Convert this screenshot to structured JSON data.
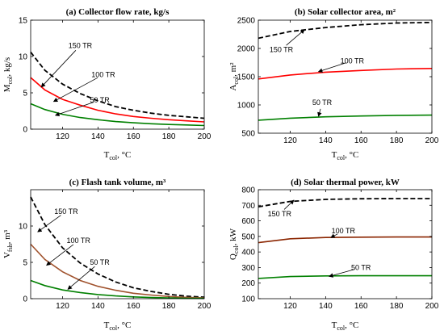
{
  "chart_data": [
    {
      "type": "line",
      "title": "(a) Collector flow rate, kg/s",
      "ylabel_main": "M",
      "ylabel_sub": "col",
      "ylabel_rest": ", kg/s",
      "xlabel_main": "T",
      "xlabel_sub": "col",
      "xlabel_rest": ", °C",
      "xlim": [
        102,
        200
      ],
      "ylim": [
        0,
        15
      ],
      "xticks": [
        120,
        140,
        160,
        180,
        200
      ],
      "yticks": [
        0,
        5,
        10,
        15
      ],
      "x": [
        102,
        110,
        120,
        130,
        140,
        150,
        160,
        170,
        180,
        190,
        200
      ],
      "series": [
        {
          "name": "150 TR",
          "color": "#000000",
          "dash": true,
          "values": [
            10.6,
            8.1,
            6.2,
            4.9,
            3.9,
            3.1,
            2.6,
            2.2,
            1.9,
            1.7,
            1.5
          ]
        },
        {
          "name": "100 TR",
          "color": "#ff0000",
          "dash": false,
          "values": [
            7.1,
            5.4,
            4.1,
            3.3,
            2.6,
            2.1,
            1.75,
            1.5,
            1.3,
            1.15,
            1.0
          ]
        },
        {
          "name": "50 TR",
          "color": "#008000",
          "dash": false,
          "values": [
            3.5,
            2.7,
            2.05,
            1.6,
            1.3,
            1.05,
            0.88,
            0.75,
            0.65,
            0.58,
            0.5
          ]
        }
      ],
      "annotations": [
        {
          "text": "150 TR",
          "x": 130,
          "y": 11.5,
          "tx": 108,
          "ty": 5.8
        },
        {
          "text": "100 TR",
          "x": 143,
          "y": 7.5,
          "tx": 115,
          "ty": 3.8
        },
        {
          "text": "50 TR",
          "x": 141,
          "y": 4.0,
          "tx": 116,
          "ty": 1.9
        }
      ]
    },
    {
      "type": "line",
      "title": "(b) Solar collector area, m²",
      "ylabel_main": "A",
      "ylabel_sub": "col",
      "ylabel_rest": ", m²",
      "xlabel_main": "T",
      "xlabel_sub": "col",
      "xlabel_rest": ", °C",
      "xlim": [
        102,
        200
      ],
      "ylim": [
        500,
        2500
      ],
      "xticks": [
        120,
        140,
        160,
        180,
        200
      ],
      "yticks": [
        500,
        1000,
        1500,
        2000,
        2500
      ],
      "x": [
        102,
        120,
        140,
        160,
        180,
        200
      ],
      "series": [
        {
          "name": "150 TR",
          "color": "#000000",
          "dash": true,
          "values": [
            2180,
            2300,
            2370,
            2420,
            2450,
            2460
          ]
        },
        {
          "name": "100 TR",
          "color": "#ff0000",
          "dash": false,
          "values": [
            1460,
            1530,
            1580,
            1610,
            1635,
            1645
          ]
        },
        {
          "name": "50 TR",
          "color": "#008000",
          "dash": false,
          "values": [
            730,
            765,
            790,
            805,
            815,
            820
          ]
        }
      ],
      "annotations": [
        {
          "text": "150 TR",
          "x": 115,
          "y": 1980,
          "tx": 128,
          "ty": 2330
        },
        {
          "text": "100 TR",
          "x": 155,
          "y": 1780,
          "tx": 136,
          "ty": 1590
        },
        {
          "text": "50 TR",
          "x": 138,
          "y": 1040,
          "tx": 136,
          "ty": 800
        }
      ]
    },
    {
      "type": "line",
      "title": "(c) Flash tank volume, m³",
      "ylabel_main": "V",
      "ylabel_sub": "fsh",
      "ylabel_rest": ", m³",
      "xlabel_main": "T",
      "xlabel_sub": "col",
      "xlabel_rest": ", °C",
      "xlim": [
        102,
        200
      ],
      "ylim": [
        0,
        15
      ],
      "xticks": [
        120,
        140,
        160,
        180,
        200
      ],
      "yticks": [
        0,
        5,
        10
      ],
      "x": [
        102,
        110,
        120,
        130,
        140,
        150,
        160,
        170,
        180,
        190,
        200
      ],
      "series": [
        {
          "name": "150 TR",
          "color": "#000000",
          "dash": true,
          "values": [
            14.0,
            10.2,
            7.0,
            4.9,
            3.4,
            2.3,
            1.5,
            1.0,
            0.6,
            0.35,
            0.2
          ]
        },
        {
          "name": "100 TR",
          "color": "#a0522d",
          "dash": false,
          "values": [
            7.5,
            5.4,
            3.7,
            2.5,
            1.7,
            1.15,
            0.75,
            0.5,
            0.3,
            0.18,
            0.1
          ]
        },
        {
          "name": "50 TR",
          "color": "#008000",
          "dash": false,
          "values": [
            2.5,
            1.8,
            1.2,
            0.85,
            0.57,
            0.38,
            0.25,
            0.16,
            0.1,
            0.06,
            0.04
          ]
        }
      ],
      "annotations": [
        {
          "text": "150 TR",
          "x": 122,
          "y": 12.0,
          "tx": 106,
          "ty": 9.2
        },
        {
          "text": "100 TR",
          "x": 129,
          "y": 8.0,
          "tx": 111,
          "ty": 4.6
        },
        {
          "text": "50 TR",
          "x": 141,
          "y": 5.0,
          "tx": 123,
          "ty": 1.3
        }
      ]
    },
    {
      "type": "line",
      "title": "(d) Solar thermal power, kW",
      "ylabel_main": "Q",
      "ylabel_sub": "col",
      "ylabel_rest": ", kW",
      "xlabel_main": "T",
      "xlabel_sub": "col",
      "xlabel_rest": ", °C",
      "xlim": [
        102,
        200
      ],
      "ylim": [
        100,
        800
      ],
      "xticks": [
        120,
        140,
        160,
        180,
        200
      ],
      "yticks": [
        100,
        200,
        300,
        400,
        500,
        600,
        700,
        800
      ],
      "x": [
        102,
        120,
        140,
        160,
        180,
        200
      ],
      "series": [
        {
          "name": "150 TR",
          "color": "#000000",
          "dash": true,
          "values": [
            690,
            725,
            738,
            742,
            743,
            743
          ]
        },
        {
          "name": "100 TR",
          "color": "#8b2500",
          "dash": false,
          "values": [
            460,
            485,
            493,
            495,
            496,
            496
          ]
        },
        {
          "name": "50 TR",
          "color": "#008000",
          "dash": false,
          "values": [
            230,
            242,
            246,
            247,
            247,
            247
          ]
        }
      ],
      "annotations": [
        {
          "text": "150 TR",
          "x": 114,
          "y": 645,
          "tx": 122,
          "ty": 732
        },
        {
          "text": "100 TR",
          "x": 150,
          "y": 535,
          "tx": 143,
          "ty": 493
        },
        {
          "text": "50 TR",
          "x": 160,
          "y": 300,
          "tx": 142,
          "ty": 243
        }
      ]
    }
  ]
}
